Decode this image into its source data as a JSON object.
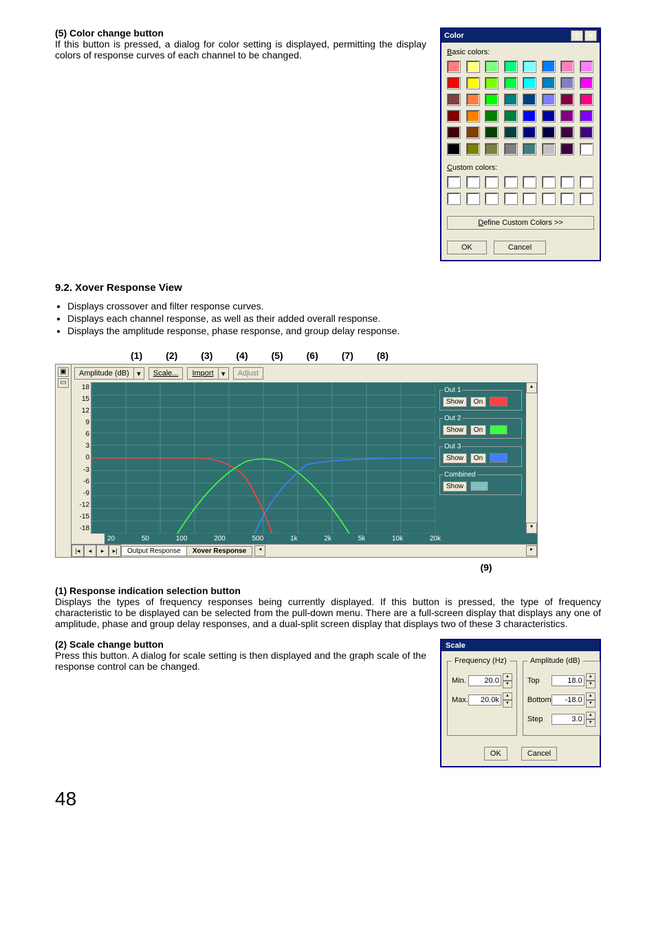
{
  "section5": {
    "heading": "(5) Color change button",
    "body": "If this button is pressed, a dialog for color setting is displayed, permitting the display colors of response curves of each channel to be changed."
  },
  "colorDialog": {
    "title": "Color",
    "basicLabel": "Basic colors:",
    "customLabel": "Custom colors:",
    "define": "Define Custom Colors >>",
    "ok": "OK",
    "cancel": "Cancel",
    "basicColors": [
      "#ff8080",
      "#ffff80",
      "#80ff80",
      "#00ff80",
      "#80ffff",
      "#0080ff",
      "#ff80c0",
      "#ff80ff",
      "#ff0000",
      "#ffff00",
      "#80ff00",
      "#00ff40",
      "#00ffff",
      "#0080c0",
      "#8080c0",
      "#ff00ff",
      "#804040",
      "#ff8040",
      "#00ff00",
      "#008080",
      "#004080",
      "#8080ff",
      "#800040",
      "#ff0080",
      "#800000",
      "#ff8000",
      "#008000",
      "#008040",
      "#0000ff",
      "#0000a0",
      "#800080",
      "#8000ff",
      "#400000",
      "#804000",
      "#004000",
      "#004040",
      "#000080",
      "#000040",
      "#400040",
      "#400080",
      "#000000",
      "#808000",
      "#808040",
      "#808080",
      "#408080",
      "#c0c0c0",
      "#400040",
      "#ffffff"
    ],
    "customColors": [
      "#ffffff",
      "#ffffff",
      "#ffffff",
      "#ffffff",
      "#ffffff",
      "#ffffff",
      "#ffffff",
      "#ffffff",
      "#ffffff",
      "#ffffff",
      "#ffffff",
      "#ffffff",
      "#ffffff",
      "#ffffff",
      "#ffffff",
      "#ffffff"
    ]
  },
  "xoverSection": {
    "heading": "9.2. Xover Response View",
    "bullets": [
      "Displays crossover and filter response curves.",
      "Displays each channel response, as well as their added overall response.",
      "Displays the amplitude response, phase response, and group delay response."
    ]
  },
  "callouts": [
    "(1)",
    "(2)",
    "(3)",
    "(4)",
    "(5)",
    "(6)",
    "(7)",
    "(8)"
  ],
  "chart": {
    "responseLabel": "Amplitude (dB)",
    "scaleBtn": "Scale...",
    "importBtn": "Import",
    "adjustBtn": "Adjust",
    "yticks": [
      "18",
      "15",
      "12",
      "9",
      "6",
      "3",
      "0",
      "-3",
      "-6",
      "-9",
      "-12",
      "-15",
      "-18"
    ],
    "xticks": [
      "20",
      "50",
      "100",
      "200",
      "500",
      "1k",
      "2k",
      "5k",
      "10k",
      "20k"
    ],
    "plotBg": "#2f6f6f",
    "gridColor": "#6aa0a0",
    "curves": {
      "out1": "#ff4040",
      "out2": "#40ff40",
      "out3": "#4080ff",
      "combined": "#80c0c0"
    },
    "legend": {
      "out1": "Out 1",
      "out2": "Out 2",
      "out3": "Out 3",
      "combined": "Combined",
      "show": "Show",
      "on": "On"
    },
    "tabs": {
      "output": "Output Response",
      "xover": "Xover Response"
    }
  },
  "callout9": "(9)",
  "item1": {
    "heading": "(1) Response indication selection button",
    "body": "Displays the types of frequency responses being currently displayed. If this button is pressed, the type of frequency characteristic to be displayed can be selected from the pull-down menu. There are a full-screen display that displays any one of amplitude, phase and group delay responses, and a dual-split screen display that displays two of these 3 characteristics."
  },
  "item2": {
    "heading": "(2) Scale change button",
    "body": "Press this button. A dialog for scale setting is then displayed and the graph scale of the response control can be changed."
  },
  "scaleDialog": {
    "title": "Scale",
    "freqLegend": "Frequency (Hz)",
    "ampLegend": "Amplitude (dB)",
    "min": "Min.",
    "max": "Max.",
    "top": "Top",
    "bottom": "Bottom",
    "step": "Step",
    "minVal": "20.0",
    "maxVal": "20.0k",
    "topVal": "18.0",
    "bottomVal": "-18.0",
    "stepVal": "3.0",
    "ok": "OK",
    "cancel": "Cancel"
  },
  "pageNumber": "48"
}
